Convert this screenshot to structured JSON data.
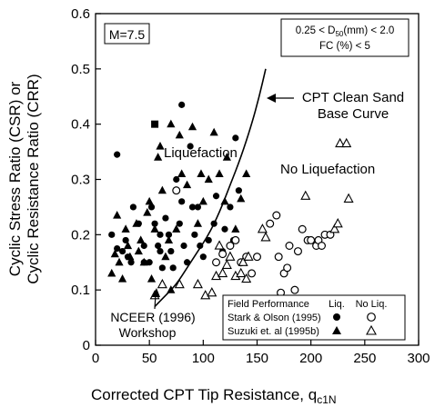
{
  "chart_data": {
    "type": "scatter",
    "xlabel": "Corrected CPT Tip Resistance, q",
    "xlabel_sub": "c1N",
    "ylabel_line1": "Cyclic Stress Ratio (CSR) or",
    "ylabel_line2": "Cyclic Resistance Ratio (CRR)",
    "xlim": [
      0,
      300
    ],
    "ylim": [
      0,
      0.6
    ],
    "xticks": [
      "0",
      "50",
      "100",
      "150",
      "200",
      "250",
      "300"
    ],
    "yticks": [
      "0",
      "0.1",
      "0.2",
      "0.3",
      "0.4",
      "0.5",
      "0.6"
    ],
    "magnitude_label": "M=7.5",
    "conditions": {
      "d50_left": "0.25 < D",
      "d50_sub": "50",
      "d50_right": "(mm) < 2.0",
      "fines": "FC (%) < 5"
    },
    "annotations": {
      "curve_label_line1": "CPT Clean Sand",
      "curve_label_line2": "Base Curve",
      "liquefaction": "Liquefaction",
      "no_liquefaction": "No Liquefaction",
      "workshop_line1": "NCEER (1996)",
      "workshop_line2": "Workshop"
    },
    "legend": {
      "title": "Field Performance",
      "col_liq": "Liq.",
      "col_noliq": "No Liq.",
      "rows": [
        "Stark & Olson (1995)",
        "Suzuki et. al (1995b)"
      ]
    },
    "base_curve": [
      [
        55,
        0.07
      ],
      [
        65,
        0.09
      ],
      [
        75,
        0.11
      ],
      [
        85,
        0.14
      ],
      [
        95,
        0.17
      ],
      [
        105,
        0.2
      ],
      [
        115,
        0.24
      ],
      [
        125,
        0.29
      ],
      [
        135,
        0.34
      ],
      [
        145,
        0.4
      ],
      [
        152,
        0.45
      ],
      [
        158,
        0.5
      ]
    ],
    "series": [
      {
        "marker": "filled-circle",
        "points": [
          [
            20,
            0.345
          ],
          [
            15,
            0.2
          ],
          [
            20,
            0.175
          ],
          [
            25,
            0.17
          ],
          [
            28,
            0.19
          ],
          [
            30,
            0.16
          ],
          [
            33,
            0.15
          ],
          [
            35,
            0.25
          ],
          [
            40,
            0.22
          ],
          [
            45,
            0.18
          ],
          [
            45,
            0.15
          ],
          [
            50,
            0.15
          ],
          [
            52,
            0.25
          ],
          [
            55,
            0.22
          ],
          [
            58,
            0.18
          ],
          [
            60,
            0.2
          ],
          [
            60,
            0.17
          ],
          [
            62,
            0.14
          ],
          [
            65,
            0.23
          ],
          [
            68,
            0.2
          ],
          [
            70,
            0.17
          ],
          [
            72,
            0.14
          ],
          [
            75,
            0.3
          ],
          [
            78,
            0.22
          ],
          [
            80,
            0.26
          ],
          [
            80,
            0.435
          ],
          [
            82,
            0.18
          ],
          [
            85,
            0.15
          ],
          [
            88,
            0.36
          ],
          [
            90,
            0.25
          ],
          [
            92,
            0.2
          ],
          [
            95,
            0.25
          ],
          [
            97,
            0.18
          ],
          [
            100,
            0.16
          ],
          [
            105,
            0.19
          ],
          [
            110,
            0.22
          ],
          [
            112,
            0.27
          ],
          [
            118,
            0.17
          ],
          [
            120,
            0.21
          ],
          [
            125,
            0.25
          ],
          [
            128,
            0.19
          ],
          [
            130,
            0.375
          ],
          [
            133,
            0.28
          ]
        ]
      },
      {
        "marker": "filled-square",
        "points": [
          [
            55,
            0.4
          ]
        ]
      },
      {
        "marker": "filled-triangle",
        "points": [
          [
            15,
            0.13
          ],
          [
            18,
            0.165
          ],
          [
            20,
            0.235
          ],
          [
            22,
            0.15
          ],
          [
            25,
            0.12
          ],
          [
            28,
            0.21
          ],
          [
            30,
            0.18
          ],
          [
            32,
            0.16
          ],
          [
            38,
            0.22
          ],
          [
            40,
            0.17
          ],
          [
            42,
            0.19
          ],
          [
            45,
            0.15
          ],
          [
            48,
            0.24
          ],
          [
            50,
            0.26
          ],
          [
            52,
            0.12
          ],
          [
            55,
            0.21
          ],
          [
            58,
            0.34
          ],
          [
            60,
            0.36
          ],
          [
            62,
            0.28
          ],
          [
            65,
            0.16
          ],
          [
            68,
            0.19
          ],
          [
            70,
            0.1
          ],
          [
            70,
            0.4
          ],
          [
            75,
            0.21
          ],
          [
            78,
            0.38
          ],
          [
            80,
            0.31
          ],
          [
            85,
            0.29
          ],
          [
            90,
            0.395
          ],
          [
            95,
            0.22
          ],
          [
            98,
            0.31
          ],
          [
            100,
            0.26
          ],
          [
            105,
            0.3
          ],
          [
            110,
            0.385
          ],
          [
            115,
            0.31
          ],
          [
            120,
            0.26
          ],
          [
            122,
            0.34
          ],
          [
            130,
            0.21
          ],
          [
            135,
            0.265
          ],
          [
            140,
            0.31
          ]
        ]
      },
      {
        "marker": "open-circle",
        "points": [
          [
            75,
            0.28
          ],
          [
            112,
            0.15
          ],
          [
            118,
            0.165
          ],
          [
            125,
            0.18
          ],
          [
            130,
            0.19
          ],
          [
            135,
            0.15
          ],
          [
            140,
            0.16
          ],
          [
            145,
            0.13
          ],
          [
            150,
            0.16
          ],
          [
            162,
            0.22
          ],
          [
            168,
            0.235
          ],
          [
            170,
            0.16
          ],
          [
            172,
            0.095
          ],
          [
            175,
            0.13
          ],
          [
            178,
            0.14
          ],
          [
            180,
            0.18
          ],
          [
            185,
            0.1
          ],
          [
            188,
            0.17
          ],
          [
            192,
            0.21
          ],
          [
            197,
            0.19
          ],
          [
            200,
            0.19
          ],
          [
            205,
            0.18
          ],
          [
            207,
            0.19
          ],
          [
            210,
            0.18
          ],
          [
            213,
            0.2
          ],
          [
            218,
            0.2
          ]
        ]
      },
      {
        "marker": "open-triangle",
        "points": [
          [
            55,
            0.09
          ],
          [
            62,
            0.11
          ],
          [
            78,
            0.11
          ],
          [
            95,
            0.11
          ],
          [
            102,
            0.09
          ],
          [
            108,
            0.095
          ],
          [
            112,
            0.125
          ],
          [
            115,
            0.18
          ],
          [
            118,
            0.13
          ],
          [
            122,
            0.145
          ],
          [
            125,
            0.16
          ],
          [
            130,
            0.125
          ],
          [
            135,
            0.13
          ],
          [
            137,
            0.15
          ],
          [
            140,
            0.12
          ],
          [
            142,
            0.16
          ],
          [
            155,
            0.21
          ],
          [
            158,
            0.195
          ],
          [
            195,
            0.27
          ],
          [
            222,
            0.21
          ],
          [
            225,
            0.22
          ],
          [
            227,
            0.365
          ],
          [
            233,
            0.365
          ],
          [
            235,
            0.265
          ]
        ]
      }
    ]
  }
}
